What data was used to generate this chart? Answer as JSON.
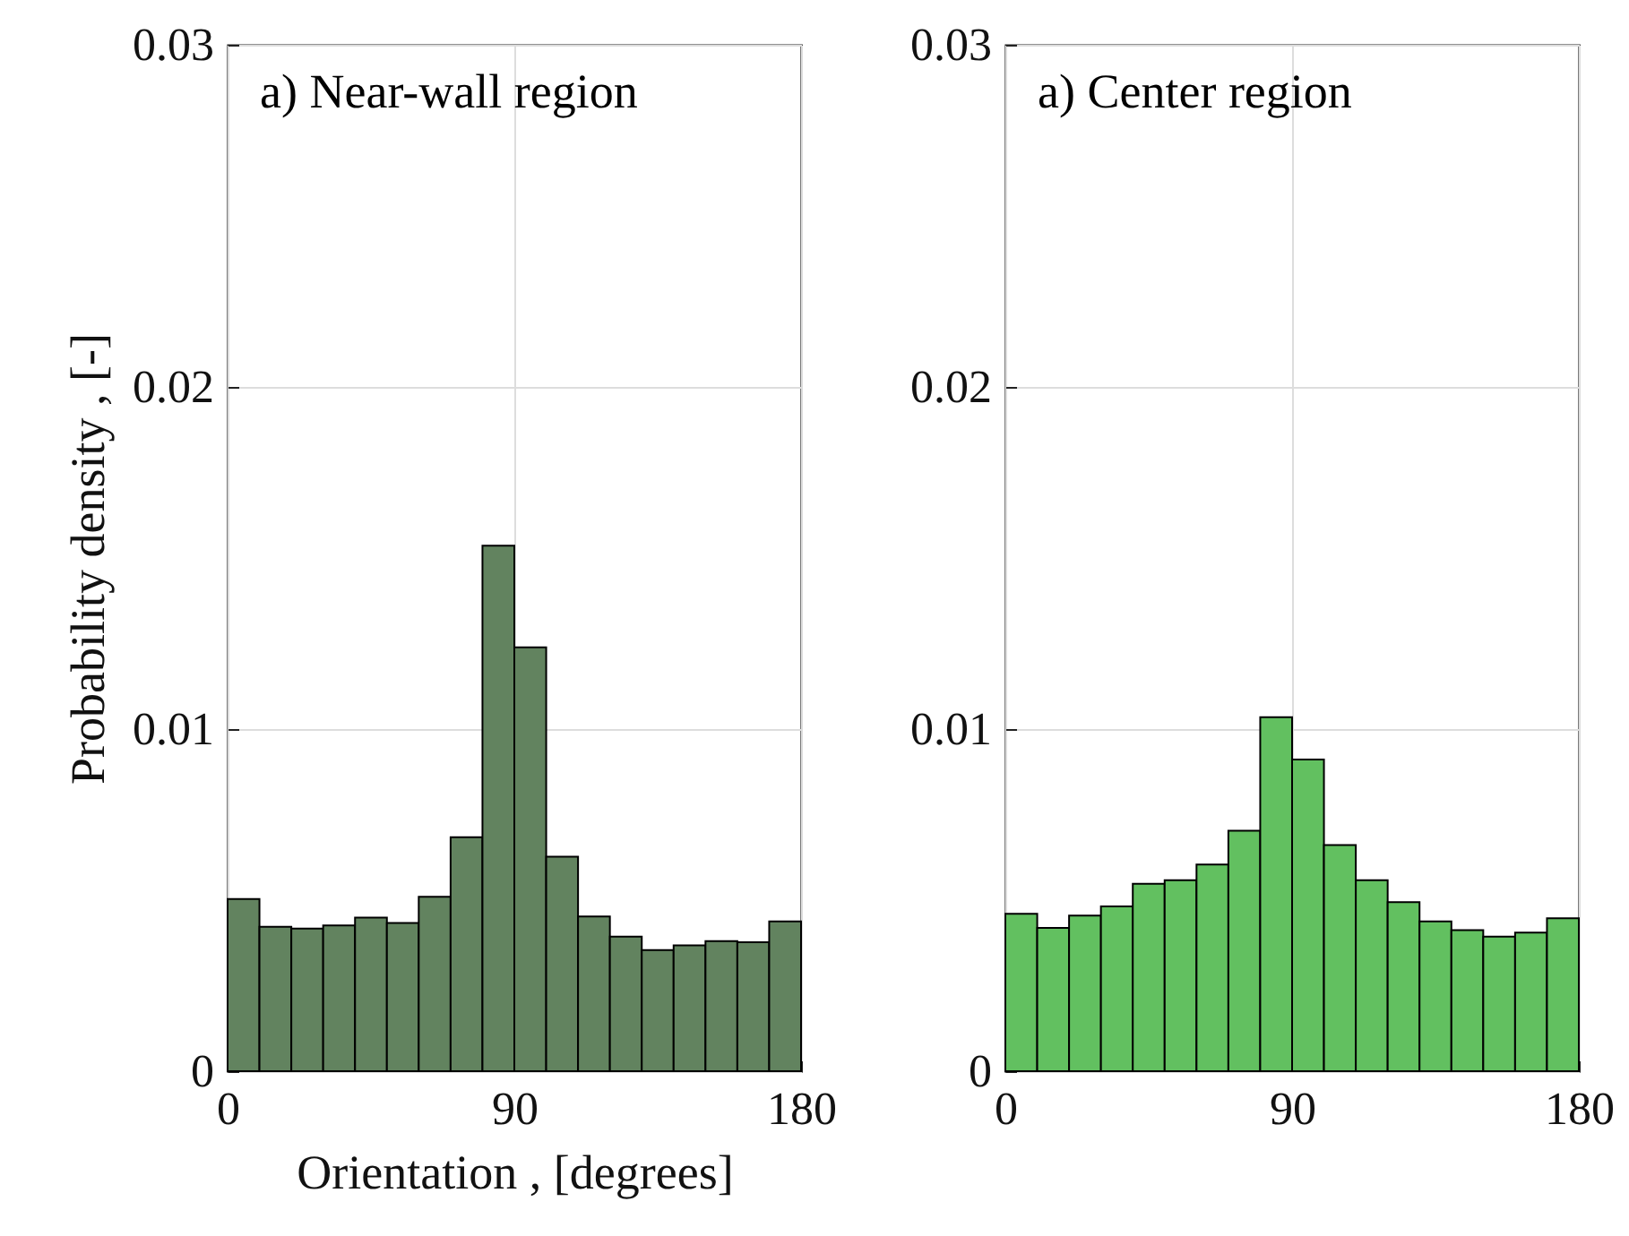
{
  "chart_data": [
    {
      "type": "histogram",
      "title": "a) Near-wall region",
      "xlabel": "Orientation , [degrees]",
      "ylabel": "Probability density , [-]",
      "bins": [
        0,
        10,
        20,
        30,
        40,
        50,
        60,
        70,
        80,
        90,
        100,
        110,
        120,
        130,
        140,
        150,
        160,
        170,
        180
      ],
      "values": [
        0.00503,
        0.00422,
        0.00417,
        0.00426,
        0.00449,
        0.00433,
        0.0051,
        0.00684,
        0.01536,
        0.01239,
        0.00627,
        0.00452,
        0.00393,
        0.00354,
        0.00368,
        0.0038,
        0.00377,
        0.00438
      ],
      "color": "#62835f",
      "xlim": [
        0,
        180
      ],
      "xticks": [
        0,
        90,
        180
      ],
      "ylim": [
        0,
        0.03
      ],
      "yticks": [
        0,
        0.01,
        0.02,
        0.03
      ],
      "grid": true
    },
    {
      "type": "histogram",
      "title": "a) Center region",
      "bins": [
        0,
        10,
        20,
        30,
        40,
        50,
        60,
        70,
        80,
        90,
        100,
        110,
        120,
        130,
        140,
        150,
        160,
        170,
        180
      ],
      "values": [
        0.0046,
        0.00419,
        0.00455,
        0.00482,
        0.00548,
        0.00558,
        0.00604,
        0.00703,
        0.01035,
        0.00911,
        0.00661,
        0.00558,
        0.00494,
        0.00438,
        0.00412,
        0.00393,
        0.00405,
        0.00447
      ],
      "color": "#62c060",
      "xlim": [
        0,
        180
      ],
      "xticks": [
        0,
        90,
        180
      ],
      "ylim": [
        0,
        0.03
      ],
      "yticks": [
        0,
        0.01,
        0.02,
        0.03
      ],
      "grid": true
    }
  ]
}
